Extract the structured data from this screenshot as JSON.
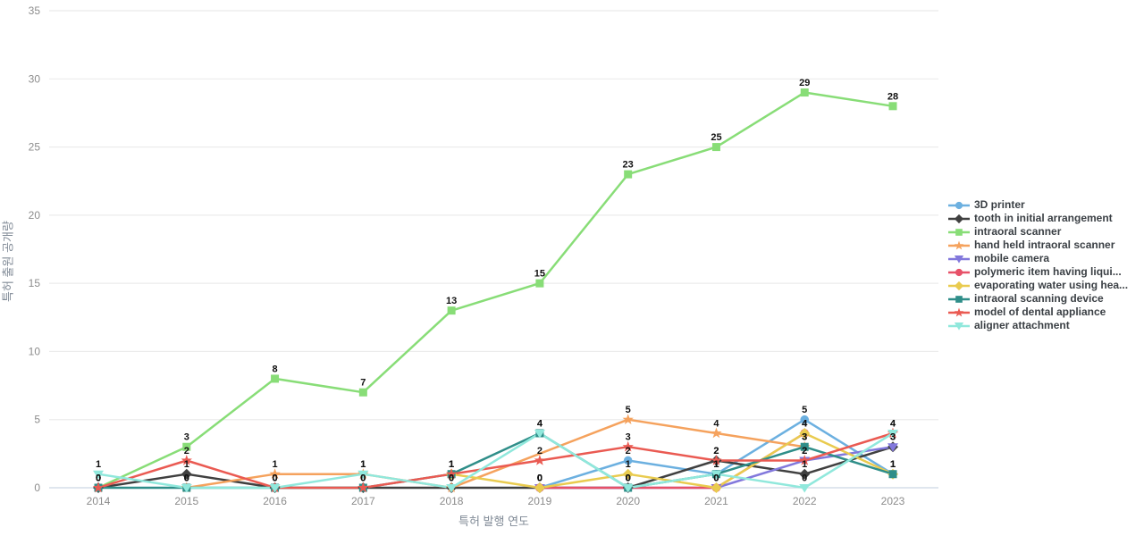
{
  "axes": {
    "x_title": "특허 발행 연도",
    "y_title": "특허 출원 공개량"
  },
  "chart_data": {
    "type": "line",
    "title": "",
    "xlabel": "특허 발행 연도",
    "ylabel": "특허 출원 공개량",
    "x": [
      2014,
      2015,
      2016,
      2017,
      2018,
      2019,
      2020,
      2021,
      2022,
      2023
    ],
    "yticks": [
      0,
      5,
      10,
      15,
      20,
      25,
      30,
      35
    ],
    "ylim": [
      0,
      35
    ],
    "grid": true,
    "legend_position": "right",
    "series": [
      {
        "name": "3D printer",
        "color": "#6cb0e0",
        "marker": "circle",
        "values": [
          null,
          null,
          null,
          null,
          null,
          0,
          2,
          1,
          5,
          1
        ]
      },
      {
        "name": "tooth in initial arrangement",
        "color": "#404040",
        "marker": "diamond",
        "values": [
          0,
          1,
          0,
          0,
          0,
          0,
          0,
          2,
          1,
          3
        ]
      },
      {
        "name": "intraoral scanner",
        "color": "#88dd77",
        "marker": "square",
        "values": [
          0,
          3,
          8,
          7,
          13,
          15,
          23,
          25,
          29,
          28
        ]
      },
      {
        "name": "hand held intraoral scanner",
        "color": "#f5a25d",
        "marker": "star",
        "values": [
          null,
          0,
          1,
          1,
          0,
          null,
          5,
          4,
          3,
          null
        ]
      },
      {
        "name": "mobile camera",
        "color": "#8278dc",
        "marker": "triangle-down",
        "values": [
          null,
          null,
          null,
          null,
          null,
          0,
          0,
          0,
          2,
          3
        ]
      },
      {
        "name": "polymeric item having liqui...",
        "color": "#e75168",
        "marker": "circle",
        "values": [
          null,
          null,
          null,
          null,
          null,
          0,
          0,
          0,
          4,
          null
        ]
      },
      {
        "name": "evaporating water using hea...",
        "color": "#e9cb4f",
        "marker": "diamond",
        "values": [
          null,
          null,
          null,
          null,
          1,
          0,
          1,
          0,
          4,
          1
        ]
      },
      {
        "name": "intraoral scanning device",
        "color": "#2f8e89",
        "marker": "square",
        "values": [
          0,
          0,
          0,
          0,
          1,
          4,
          0,
          1,
          3,
          1
        ]
      },
      {
        "name": "model of dental appliance",
        "color": "#ea5a52",
        "marker": "star",
        "values": [
          0,
          2,
          0,
          0,
          1,
          2,
          3,
          2,
          2,
          4
        ]
      },
      {
        "name": "aligner attachment",
        "color": "#90e8dc",
        "marker": "triangle-down",
        "values": [
          1,
          0,
          0,
          1,
          0,
          4,
          0,
          1,
          0,
          4
        ]
      }
    ]
  }
}
